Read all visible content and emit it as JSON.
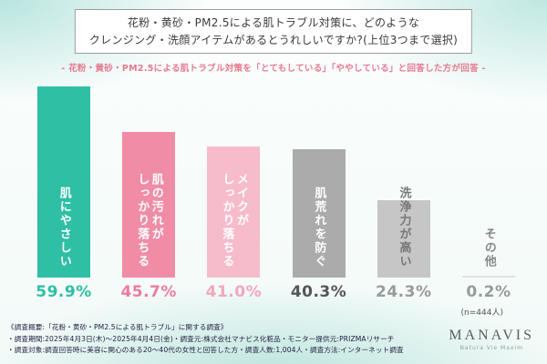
{
  "title": {
    "line1": "花粉・黄砂・PM2.5による肌トラブル対策に、どのような",
    "line2": "クレンジング・洗顔アイテムがあるとうれしいですか?(上位3つまで選択)"
  },
  "subtitle": "- 花粉・黄砂・PM2.5による肌トラブル対策を「とてもしている」「ややしている」と回答した方が回答 -",
  "chart_data": {
    "type": "bar",
    "categories": [
      "肌にやさしい",
      "肌の汚れが\nしっかり落ちる",
      "メイクが\nしっかり落ちる",
      "肌荒れを防ぐ",
      "洗浄力が高い",
      "その他"
    ],
    "values": [
      59.9,
      45.7,
      41.0,
      40.3,
      24.3,
      0.2
    ],
    "value_labels": [
      "59.9%",
      "45.7%",
      "41.0%",
      "40.3%",
      "24.3%",
      "0.2%"
    ],
    "bar_colors": [
      "#2ebfa5",
      "#f08ca6",
      "#f6bccb",
      "#ababab",
      "#c6c6c6",
      "#e2e2e2"
    ],
    "label_colors": [
      "#ffffff",
      "#ffffff",
      "#ffffff",
      "#ffffff",
      "#777777",
      "#888888"
    ],
    "value_colors": [
      "#2ebfa5",
      "#ee7b9d",
      "#f3a6bd",
      "#555555",
      "#9a9a9a",
      "#9a9a9a"
    ],
    "ylim": [
      0,
      65
    ],
    "grid": false,
    "legend": "none",
    "n_note": "(n=444人)"
  },
  "footer": {
    "line1": "《調査概要:「花粉・黄砂・PM2.5による肌トラブル」に関する調査》",
    "line2": "・調査期間:2025年4月3日(木)〜2025年4月4日(金)・調査元:株式会社マナビス化粧品・モニター提供元:PRIZMAリサーチ",
    "line3": "・調査対象:調査回答時に美容に関心のある20〜40代の女性と回答した方・調査人数:1,004人・調査方法:インターネット調査"
  },
  "logo": {
    "name": "MANAVIS",
    "tagline": "Natura Vie Maxim"
  }
}
